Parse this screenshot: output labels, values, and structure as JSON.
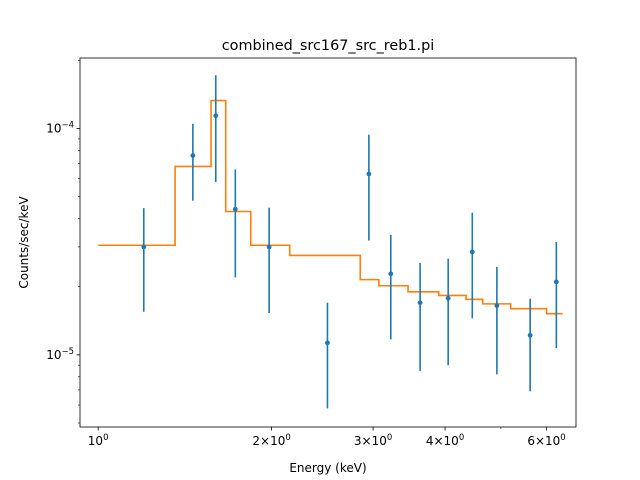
{
  "chart_data": {
    "type": "scatter",
    "title": "combined_src167_src_reb1.pi",
    "xlabel": "Energy (keV)",
    "ylabel": "Counts/sec/keV",
    "xscale": "log",
    "yscale": "log",
    "xlim": [
      0.93,
      6.75
    ],
    "ylim": [
      4.8e-06,
      0.000205
    ],
    "grid": false,
    "colors": {
      "data": "#1f77b4",
      "model": "#ff7f0e",
      "axes": "#000000"
    },
    "x_ticks": [
      {
        "value": 1,
        "base": "10",
        "exp": "0"
      },
      {
        "value": 2,
        "base": "2×10",
        "exp": "0"
      },
      {
        "value": 3,
        "base": "3×10",
        "exp": "0"
      },
      {
        "value": 4,
        "base": "4×10",
        "exp": "0"
      },
      {
        "value": 6,
        "base": "6×10",
        "exp": "0"
      }
    ],
    "y_ticks": [
      {
        "value": 1e-05,
        "base": "10",
        "exp": "−5"
      },
      {
        "value": 0.0001,
        "base": "10",
        "exp": "−4"
      }
    ],
    "data_series": {
      "name": "data",
      "points": [
        {
          "x": 1.2,
          "y": 3e-05,
          "lo": 1.55e-05,
          "hi": 4.45e-05
        },
        {
          "x": 1.46,
          "y": 7.6e-05,
          "lo": 4.8e-05,
          "hi": 0.000105
        },
        {
          "x": 1.6,
          "y": 0.000114,
          "lo": 5.8e-05,
          "hi": 0.000172
        },
        {
          "x": 1.73,
          "y": 4.4e-05,
          "lo": 2.2e-05,
          "hi": 6.6e-05
        },
        {
          "x": 1.98,
          "y": 3e-05,
          "lo": 1.53e-05,
          "hi": 4.47e-05
        },
        {
          "x": 2.5,
          "y": 1.13e-05,
          "lo": 5.8e-06,
          "hi": 1.7e-05
        },
        {
          "x": 2.95,
          "y": 6.3e-05,
          "lo": 3.2e-05,
          "hi": 9.4e-05
        },
        {
          "x": 3.22,
          "y": 2.28e-05,
          "lo": 1.17e-05,
          "hi": 3.39e-05
        },
        {
          "x": 3.62,
          "y": 1.7e-05,
          "lo": 8.5e-06,
          "hi": 2.55e-05
        },
        {
          "x": 4.05,
          "y": 1.78e-05,
          "lo": 9e-06,
          "hi": 2.66e-05
        },
        {
          "x": 4.46,
          "y": 2.85e-05,
          "lo": 1.45e-05,
          "hi": 4.25e-05
        },
        {
          "x": 4.92,
          "y": 1.65e-05,
          "lo": 8.2e-06,
          "hi": 2.45e-05
        },
        {
          "x": 5.62,
          "y": 1.22e-05,
          "lo": 6.9e-06,
          "hi": 1.77e-05
        },
        {
          "x": 6.24,
          "y": 2.1e-05,
          "lo": 1.07e-05,
          "hi": 3.15e-05
        }
      ]
    },
    "model_series": {
      "name": "model",
      "type": "step",
      "steps": [
        {
          "x0": 1.0,
          "x1": 1.36,
          "y": 3.05e-05
        },
        {
          "x0": 1.36,
          "x1": 1.57,
          "y": 6.8e-05
        },
        {
          "x0": 1.57,
          "x1": 1.665,
          "y": 0.000133
        },
        {
          "x0": 1.665,
          "x1": 1.84,
          "y": 4.3e-05
        },
        {
          "x0": 1.84,
          "x1": 2.15,
          "y": 3.05e-05
        },
        {
          "x0": 2.15,
          "x1": 2.85,
          "y": 2.75e-05
        },
        {
          "x0": 2.85,
          "x1": 3.07,
          "y": 2.15e-05
        },
        {
          "x0": 3.07,
          "x1": 3.45,
          "y": 2.02e-05
        },
        {
          "x0": 3.45,
          "x1": 3.9,
          "y": 1.9e-05
        },
        {
          "x0": 3.9,
          "x1": 4.35,
          "y": 1.83e-05
        },
        {
          "x0": 4.35,
          "x1": 4.65,
          "y": 1.76e-05
        },
        {
          "x0": 4.65,
          "x1": 5.2,
          "y": 1.68e-05
        },
        {
          "x0": 5.2,
          "x1": 6.0,
          "y": 1.6e-05
        },
        {
          "x0": 6.0,
          "x1": 6.4,
          "y": 1.52e-05
        }
      ]
    }
  }
}
